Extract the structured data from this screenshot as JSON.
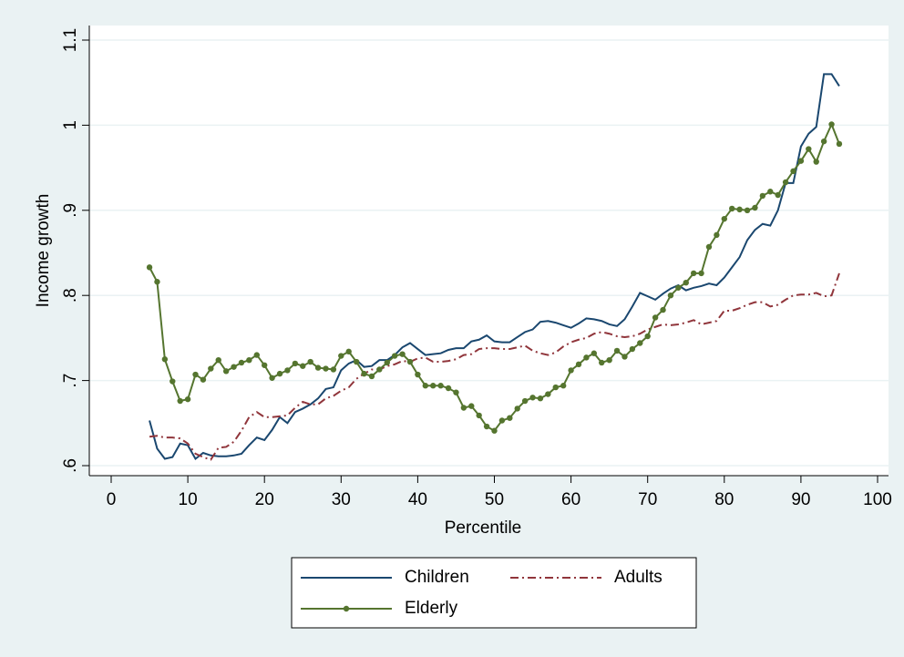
{
  "chart_data": {
    "type": "line",
    "xlabel": "Percentile",
    "ylabel": "Income growth",
    "x": [
      5,
      6,
      7,
      8,
      9,
      10,
      11,
      12,
      13,
      14,
      15,
      16,
      17,
      18,
      19,
      20,
      21,
      22,
      23,
      24,
      25,
      26,
      27,
      28,
      29,
      30,
      31,
      32,
      33,
      34,
      35,
      36,
      37,
      38,
      39,
      40,
      41,
      42,
      43,
      44,
      45,
      46,
      47,
      48,
      49,
      50,
      51,
      52,
      53,
      54,
      55,
      56,
      57,
      58,
      59,
      60,
      61,
      62,
      63,
      64,
      65,
      66,
      67,
      68,
      69,
      70,
      71,
      72,
      73,
      74,
      75,
      76,
      77,
      78,
      79,
      80,
      81,
      82,
      83,
      84,
      85,
      86,
      87,
      88,
      89,
      90,
      91,
      92,
      93,
      94,
      95
    ],
    "series": [
      {
        "name": "Children",
        "color": "#1a476f",
        "line_style": "solid",
        "markers": false,
        "values": [
          0.653,
          0.62,
          0.608,
          0.61,
          0.626,
          0.624,
          0.608,
          0.615,
          0.612,
          0.611,
          0.611,
          0.612,
          0.614,
          0.624,
          0.633,
          0.63,
          0.642,
          0.657,
          0.65,
          0.663,
          0.667,
          0.672,
          0.679,
          0.69,
          0.692,
          0.712,
          0.72,
          0.724,
          0.716,
          0.717,
          0.724,
          0.724,
          0.73,
          0.739,
          0.744,
          0.737,
          0.73,
          0.731,
          0.732,
          0.736,
          0.738,
          0.738,
          0.746,
          0.748,
          0.753,
          0.746,
          0.745,
          0.745,
          0.751,
          0.757,
          0.76,
          0.769,
          0.77,
          0.768,
          0.765,
          0.762,
          0.767,
          0.773,
          0.772,
          0.77,
          0.766,
          0.764,
          0.772,
          0.787,
          0.803,
          0.799,
          0.795,
          0.802,
          0.808,
          0.812,
          0.806,
          0.809,
          0.811,
          0.814,
          0.812,
          0.821,
          0.833,
          0.845,
          0.865,
          0.877,
          0.884,
          0.882,
          0.9,
          0.932,
          0.932,
          0.975,
          0.99,
          0.998,
          1.06,
          1.06,
          1.046
        ]
      },
      {
        "name": "Adults",
        "color": "#90353b",
        "line_style": "dashdot",
        "markers": false,
        "values": [
          0.634,
          0.635,
          0.633,
          0.633,
          0.632,
          0.626,
          0.614,
          0.61,
          0.607,
          0.621,
          0.622,
          0.628,
          0.641,
          0.657,
          0.663,
          0.657,
          0.657,
          0.658,
          0.659,
          0.668,
          0.675,
          0.672,
          0.672,
          0.679,
          0.682,
          0.688,
          0.692,
          0.702,
          0.708,
          0.713,
          0.713,
          0.717,
          0.719,
          0.723,
          0.722,
          0.726,
          0.727,
          0.722,
          0.722,
          0.723,
          0.725,
          0.73,
          0.731,
          0.737,
          0.738,
          0.738,
          0.737,
          0.737,
          0.739,
          0.741,
          0.735,
          0.732,
          0.73,
          0.733,
          0.74,
          0.745,
          0.748,
          0.75,
          0.755,
          0.757,
          0.755,
          0.752,
          0.751,
          0.752,
          0.755,
          0.76,
          0.763,
          0.766,
          0.765,
          0.766,
          0.768,
          0.771,
          0.766,
          0.768,
          0.77,
          0.782,
          0.782,
          0.785,
          0.789,
          0.792,
          0.792,
          0.787,
          0.789,
          0.795,
          0.8,
          0.801,
          0.801,
          0.803,
          0.799,
          0.8,
          0.826
        ]
      },
      {
        "name": "Elderly",
        "color": "#55752f",
        "line_style": "solid",
        "markers": true,
        "values": [
          0.833,
          0.816,
          0.725,
          0.699,
          0.676,
          0.678,
          0.707,
          0.701,
          0.714,
          0.724,
          0.711,
          0.716,
          0.721,
          0.724,
          0.73,
          0.718,
          0.703,
          0.708,
          0.712,
          0.72,
          0.717,
          0.722,
          0.715,
          0.714,
          0.713,
          0.729,
          0.734,
          0.722,
          0.708,
          0.705,
          0.713,
          0.721,
          0.729,
          0.731,
          0.722,
          0.707,
          0.694,
          0.694,
          0.694,
          0.691,
          0.686,
          0.668,
          0.67,
          0.659,
          0.646,
          0.641,
          0.653,
          0.656,
          0.667,
          0.676,
          0.68,
          0.679,
          0.684,
          0.692,
          0.694,
          0.712,
          0.719,
          0.727,
          0.732,
          0.721,
          0.724,
          0.735,
          0.728,
          0.737,
          0.744,
          0.752,
          0.774,
          0.783,
          0.8,
          0.809,
          0.815,
          0.826,
          0.826,
          0.857,
          0.871,
          0.89,
          0.902,
          0.901,
          0.9,
          0.903,
          0.917,
          0.922,
          0.918,
          0.933,
          0.946,
          0.958,
          0.972,
          0.957,
          0.981,
          1.001,
          0.978
        ]
      }
    ],
    "xlim": [
      0,
      100
    ],
    "xticks": [
      0,
      10,
      20,
      30,
      40,
      50,
      60,
      70,
      80,
      90,
      100
    ],
    "ylim": [
      0.6,
      1.1
    ],
    "yticks": [
      {
        "value": 0.6,
        "label": ".6"
      },
      {
        "value": 0.7,
        "label": ".7"
      },
      {
        "value": 0.8,
        "label": ".8"
      },
      {
        "value": 0.9,
        "label": ".9"
      },
      1,
      1.1
    ],
    "grid": true,
    "legend": "bottom"
  }
}
